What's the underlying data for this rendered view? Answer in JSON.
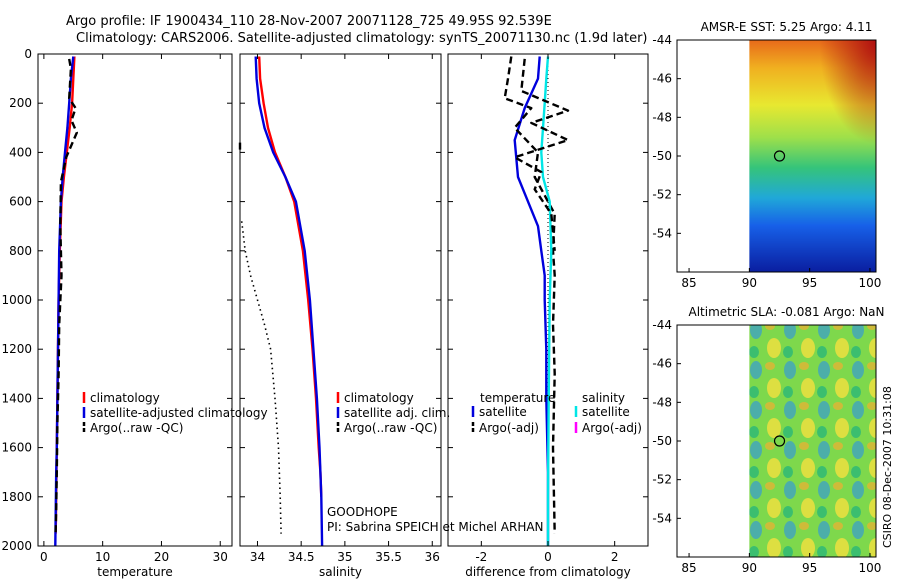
{
  "title_line1": "Argo profile: IF 1900434_110 28-Nov-2007 20071128_725 49.95S 92.539E",
  "title_line2": "Climatology: CARS2006. Satellite-adjusted climatology: synTS_20071130.nc (1.9d later)",
  "side_text": "CSIRO 08-Dec-2007 10:31:08",
  "colors": {
    "climatology": "#ff0000",
    "satellite": "#0000dd",
    "argo": "#000000",
    "sat_salinity": "#00e6e6",
    "argo_adj_sal": "#ff00ff"
  },
  "chart_data": [
    {
      "type": "line",
      "id": "temperature",
      "xlabel": "temperature",
      "xlim": [
        -1,
        32
      ],
      "ylim": [
        0,
        2000
      ],
      "yreversed": true,
      "xticks": [
        0,
        10,
        20,
        30
      ],
      "yticks": [
        0,
        200,
        400,
        600,
        800,
        1000,
        1200,
        1400,
        1600,
        1800,
        2000
      ],
      "legend": [
        "climatology",
        "satellite-adjusted climatology",
        "Argo(..raw -QC)"
      ],
      "series": [
        {
          "name": "climatology",
          "color": "#ff0000",
          "style": "solid",
          "x": [
            5.2,
            5.0,
            4.8,
            4.4,
            3.9,
            3.4,
            3.0,
            2.7,
            2.5,
            2.4,
            2.3,
            2.2,
            2.15,
            2.1,
            2.05,
            2.0
          ],
          "y": [
            10,
            100,
            200,
            300,
            400,
            500,
            600,
            800,
            1000,
            1200,
            1400,
            1600,
            1700,
            1800,
            1900,
            1950
          ]
        },
        {
          "name": "satellite-adjusted climatology",
          "color": "#0000dd",
          "style": "solid",
          "x": [
            5.0,
            4.6,
            4.3,
            4.0,
            3.6,
            3.2,
            2.9,
            2.6,
            2.5,
            2.4,
            2.3,
            2.2,
            2.1,
            2.05,
            2.0,
            1.95
          ],
          "y": [
            10,
            100,
            200,
            300,
            400,
            500,
            600,
            800,
            1000,
            1200,
            1400,
            1600,
            1700,
            1800,
            1900,
            2000
          ]
        },
        {
          "name": "Argo(..raw -QC)",
          "color": "#000000",
          "style": "dashed",
          "x": [
            4.3,
            4.6,
            4.3,
            5.4,
            4.7,
            5.6,
            3.8,
            2.9,
            2.8,
            3.0,
            2.6,
            2.5,
            2.3,
            2.2,
            2.1,
            2.0
          ],
          "y": [
            20,
            60,
            180,
            220,
            270,
            320,
            420,
            520,
            700,
            900,
            1100,
            1300,
            1500,
            1700,
            1850,
            1950
          ]
        }
      ]
    },
    {
      "type": "line",
      "id": "salinity",
      "xlabel": "salinity",
      "xlim": [
        33.8,
        36.1
      ],
      "ylim": [
        0,
        2000
      ],
      "yreversed": true,
      "xticks": [
        34,
        34.5,
        35,
        35.5,
        36
      ],
      "legend": [
        "climatology",
        "satellite adj. clim.",
        "Argo(..raw -QC)"
      ],
      "annotation_line1": "GOODHOPE",
      "annotation_line2": "PI: Sabrina SPEICH et Michel ARHAN",
      "series": [
        {
          "name": "climatology",
          "color": "#ff0000",
          "style": "solid",
          "x": [
            34.02,
            34.03,
            34.07,
            34.12,
            34.2,
            34.32,
            34.42,
            34.52,
            34.58,
            34.63,
            34.67,
            34.7,
            34.72,
            34.73
          ],
          "y": [
            10,
            100,
            200,
            300,
            400,
            500,
            600,
            800,
            1000,
            1200,
            1400,
            1600,
            1700,
            1800
          ]
        },
        {
          "name": "satellite adj. clim.",
          "color": "#0000dd",
          "style": "solid",
          "x": [
            33.98,
            33.99,
            34.02,
            34.08,
            34.18,
            34.32,
            34.44,
            34.54,
            34.6,
            34.64,
            34.68,
            34.71,
            34.72,
            34.73,
            34.74
          ],
          "y": [
            10,
            100,
            200,
            300,
            400,
            500,
            600,
            800,
            1000,
            1200,
            1400,
            1600,
            1700,
            1800,
            2000
          ]
        },
        {
          "name": "Argo(..raw -QC)",
          "color": "#000000",
          "style": "dashed",
          "x": [
            33.8,
            33.8
          ],
          "y": [
            360,
            400
          ]
        },
        {
          "name": "Argo dotted",
          "color": "#000000",
          "style": "dotted",
          "x": [
            33.82,
            33.86,
            33.92,
            34.0,
            34.08,
            34.15,
            34.2,
            34.24,
            34.26,
            34.27
          ],
          "y": [
            680,
            800,
            900,
            1000,
            1100,
            1200,
            1400,
            1600,
            1800,
            1950
          ]
        }
      ]
    },
    {
      "type": "line",
      "id": "difference",
      "xlabel": "difference from climatology",
      "xlim": [
        -3,
        3
      ],
      "ylim": [
        0,
        2000
      ],
      "yreversed": true,
      "xticks": [
        -2,
        0,
        2
      ],
      "legend_left_title": "temperature",
      "legend_right_title": "salinity",
      "legend_left": [
        "satellite",
        "Argo(-adj)"
      ],
      "legend_right": [
        "satellite",
        "Argo(-adj)"
      ],
      "series": [
        {
          "name": "temperature satellite",
          "color": "#0000dd",
          "style": "solid",
          "x": [
            -0.25,
            -0.3,
            -0.7,
            -1.0,
            -0.9,
            -0.6,
            -0.3,
            -0.2,
            -0.1,
            -0.1,
            -0.05,
            -0.05,
            0.0,
            0.0
          ],
          "y": [
            10,
            100,
            220,
            350,
            500,
            600,
            700,
            800,
            900,
            1000,
            1200,
            1400,
            1700,
            2000
          ]
        },
        {
          "name": "temperature Argo(-adj)",
          "color": "#000000",
          "style": "dashed",
          "x": [
            -1.1,
            -1.2,
            -1.3,
            -0.5,
            -1.0,
            -0.3,
            -0.4,
            0.2,
            0.15,
            0.2,
            0.15,
            0.2,
            0.15,
            0.2
          ],
          "y": [
            10,
            100,
            180,
            220,
            300,
            400,
            500,
            650,
            800,
            900,
            1100,
            1300,
            1600,
            1950
          ]
        },
        {
          "name": "salinity satellite",
          "color": "#00e6e6",
          "style": "solid",
          "x": [
            0.0,
            -0.05,
            -0.1,
            -0.15,
            -0.2,
            -0.15,
            0.05,
            0.1,
            0.05,
            0.02,
            0.0,
            0.0
          ],
          "y": [
            10,
            100,
            200,
            300,
            400,
            500,
            600,
            800,
            1000,
            1400,
            1800,
            2000
          ]
        },
        {
          "name": "salinity Argo(-adj)",
          "color": "#000000",
          "style": "dashed",
          "x": [
            -0.7,
            -0.8,
            0.6,
            -0.5,
            0.6,
            -1.0,
            -0.2,
            -0.4,
            0.1,
            0.2
          ],
          "y": [
            20,
            150,
            230,
            280,
            350,
            420,
            480,
            550,
            650,
            800
          ]
        }
      ]
    },
    {
      "type": "heatmap",
      "id": "sst-map",
      "title": "AMSR-E SST: 5.25 Argo: 4.11",
      "xlim": [
        84,
        100.5
      ],
      "ylim": [
        -56,
        -44
      ],
      "xticks": [
        85,
        90,
        95,
        100
      ],
      "yticks": [
        -44,
        -46,
        -48,
        -50,
        -52,
        -54
      ],
      "data_xrange": [
        90,
        100.5
      ],
      "marker": {
        "lon": 92.5,
        "lat": -50
      }
    },
    {
      "type": "heatmap",
      "id": "sla-map",
      "title": "Altimetric SLA: -0.081 Argo: NaN",
      "xlim": [
        84,
        100.5
      ],
      "ylim": [
        -56,
        -44
      ],
      "xticks": [
        85,
        90,
        95,
        100
      ],
      "yticks": [
        -44,
        -46,
        -48,
        -50,
        -52,
        -54
      ],
      "data_xrange": [
        90,
        100.5
      ],
      "marker": {
        "lon": 92.5,
        "lat": -50
      }
    }
  ]
}
